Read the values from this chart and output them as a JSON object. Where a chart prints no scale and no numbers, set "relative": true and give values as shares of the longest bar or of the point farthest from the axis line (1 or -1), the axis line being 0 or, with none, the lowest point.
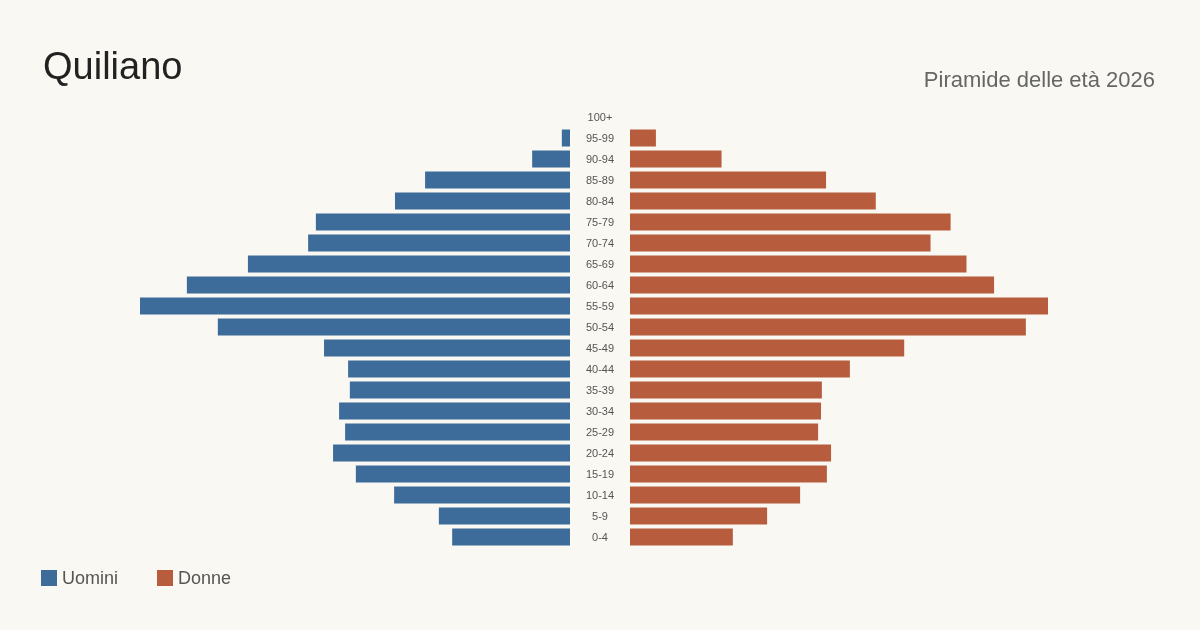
{
  "chart_data": [
    {
      "type": "bar",
      "orientation": "horizontal",
      "relative": true,
      "title": "Quiliano",
      "categories": [
        "100+",
        "95-99",
        "90-94",
        "85-89",
        "80-84",
        "75-79",
        "70-74",
        "65-69",
        "60-64",
        "55-59",
        "50-54",
        "45-49",
        "40-44",
        "35-39",
        "30-34",
        "25-29",
        "20-24",
        "15-19",
        "10-14",
        "5-9",
        "0-4"
      ],
      "series": [
        {
          "name": "Uomini",
          "color": "#3d6b9a",
          "values": [
            0,
            -0.019,
            -0.088,
            -0.337,
            -0.407,
            -0.591,
            -0.609,
            -0.749,
            -0.891,
            -1,
            -0.819,
            -0.572,
            -0.516,
            -0.512,
            -0.537,
            -0.523,
            -0.551,
            -0.498,
            -0.409,
            -0.305,
            -0.274
          ]
        }
      ],
      "legend": "bottom left"
    },
    {
      "type": "bar",
      "orientation": "horizontal",
      "relative": true,
      "subtitle": "Piramide delle età 2026",
      "categories": [
        null,
        null,
        null,
        null,
        null,
        null,
        null,
        null,
        null,
        null,
        null,
        null,
        null,
        null,
        null,
        null,
        null,
        null,
        null,
        null,
        null
      ],
      "series": [
        {
          "name": "Donne",
          "color": "#b85c3e",
          "values": [
            0,
            0.062,
            0.219,
            0.469,
            0.588,
            0.767,
            0.719,
            0.805,
            0.871,
            1,
            0.947,
            0.656,
            0.526,
            0.459,
            0.457,
            0.45,
            0.481,
            0.471,
            0.407,
            0.328,
            0.246
          ]
        }
      ],
      "legend": "bottom left"
    }
  ]
}
